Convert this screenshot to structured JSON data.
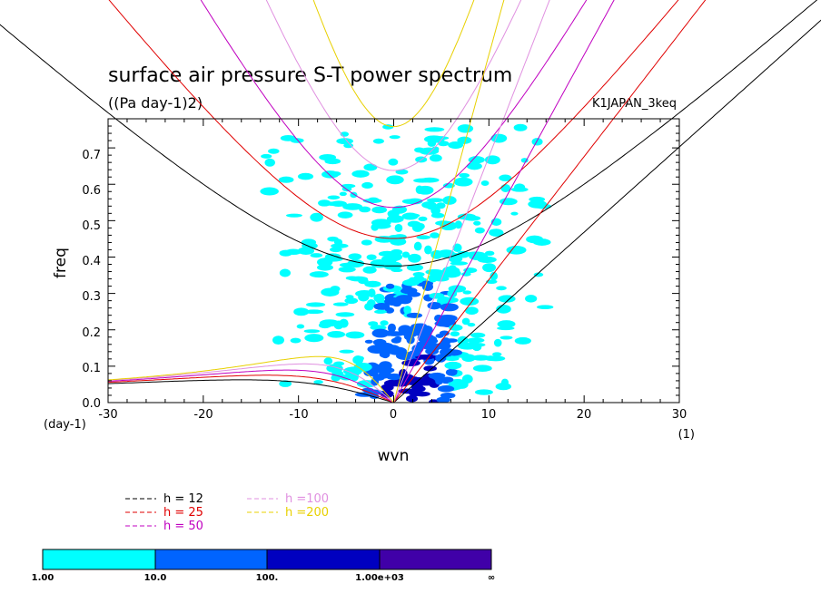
{
  "chart_data": {
    "type": "heatmap",
    "title": "surface air pressure S-T power spectrum",
    "units": "((Pa day-1)2)",
    "dataset_label": "K1JAPAN_3keq",
    "xlabel": "wvn",
    "xunit": "(1)",
    "ylabel": "freq",
    "yunit": "(day-1)",
    "xlim": [
      -30,
      30
    ],
    "ylim": [
      0.0,
      0.78
    ],
    "xticks": [
      "-30",
      "-20",
      "-10",
      "0",
      "10",
      "20",
      "30"
    ],
    "yticks": [
      "0.0",
      "0.1",
      "0.2",
      "0.3",
      "0.4",
      "0.5",
      "0.6",
      "0.7"
    ],
    "colorbar": {
      "labels": [
        "1.00",
        "10.0",
        "100.",
        "1.00e+03",
        "∞"
      ],
      "colors": [
        "#00ffff",
        "#0064ff",
        "#0000c0",
        "#4000a8"
      ]
    },
    "legend": [
      {
        "label": "h = 12",
        "color": "#000000"
      },
      {
        "label": "h = 25",
        "color": "#e00000"
      },
      {
        "label": "h = 50",
        "color": "#c000c0"
      },
      {
        "label": "h =100",
        "color": "#e090e0"
      },
      {
        "label": "h =200",
        "color": "#e8d000"
      }
    ],
    "dispersion_curves": {
      "equivalent_depths_m": [
        12,
        25,
        50,
        100,
        200
      ],
      "families": [
        "kelvin",
        "inertio-gravity n=1",
        "rossby n=1"
      ]
    },
    "power_contours": [
      {
        "level": "cyan",
        "x": [
          -12,
          14
        ],
        "y": [
          0.0,
          0.75
        ],
        "note": "scattered patches, densest near wvn 0"
      },
      {
        "level": "blue",
        "x": [
          -6,
          6
        ],
        "y": [
          0.0,
          0.35
        ]
      },
      {
        "level": "dark-blue",
        "x": [
          -2,
          5
        ],
        "y": [
          0.0,
          0.12
        ]
      }
    ]
  }
}
